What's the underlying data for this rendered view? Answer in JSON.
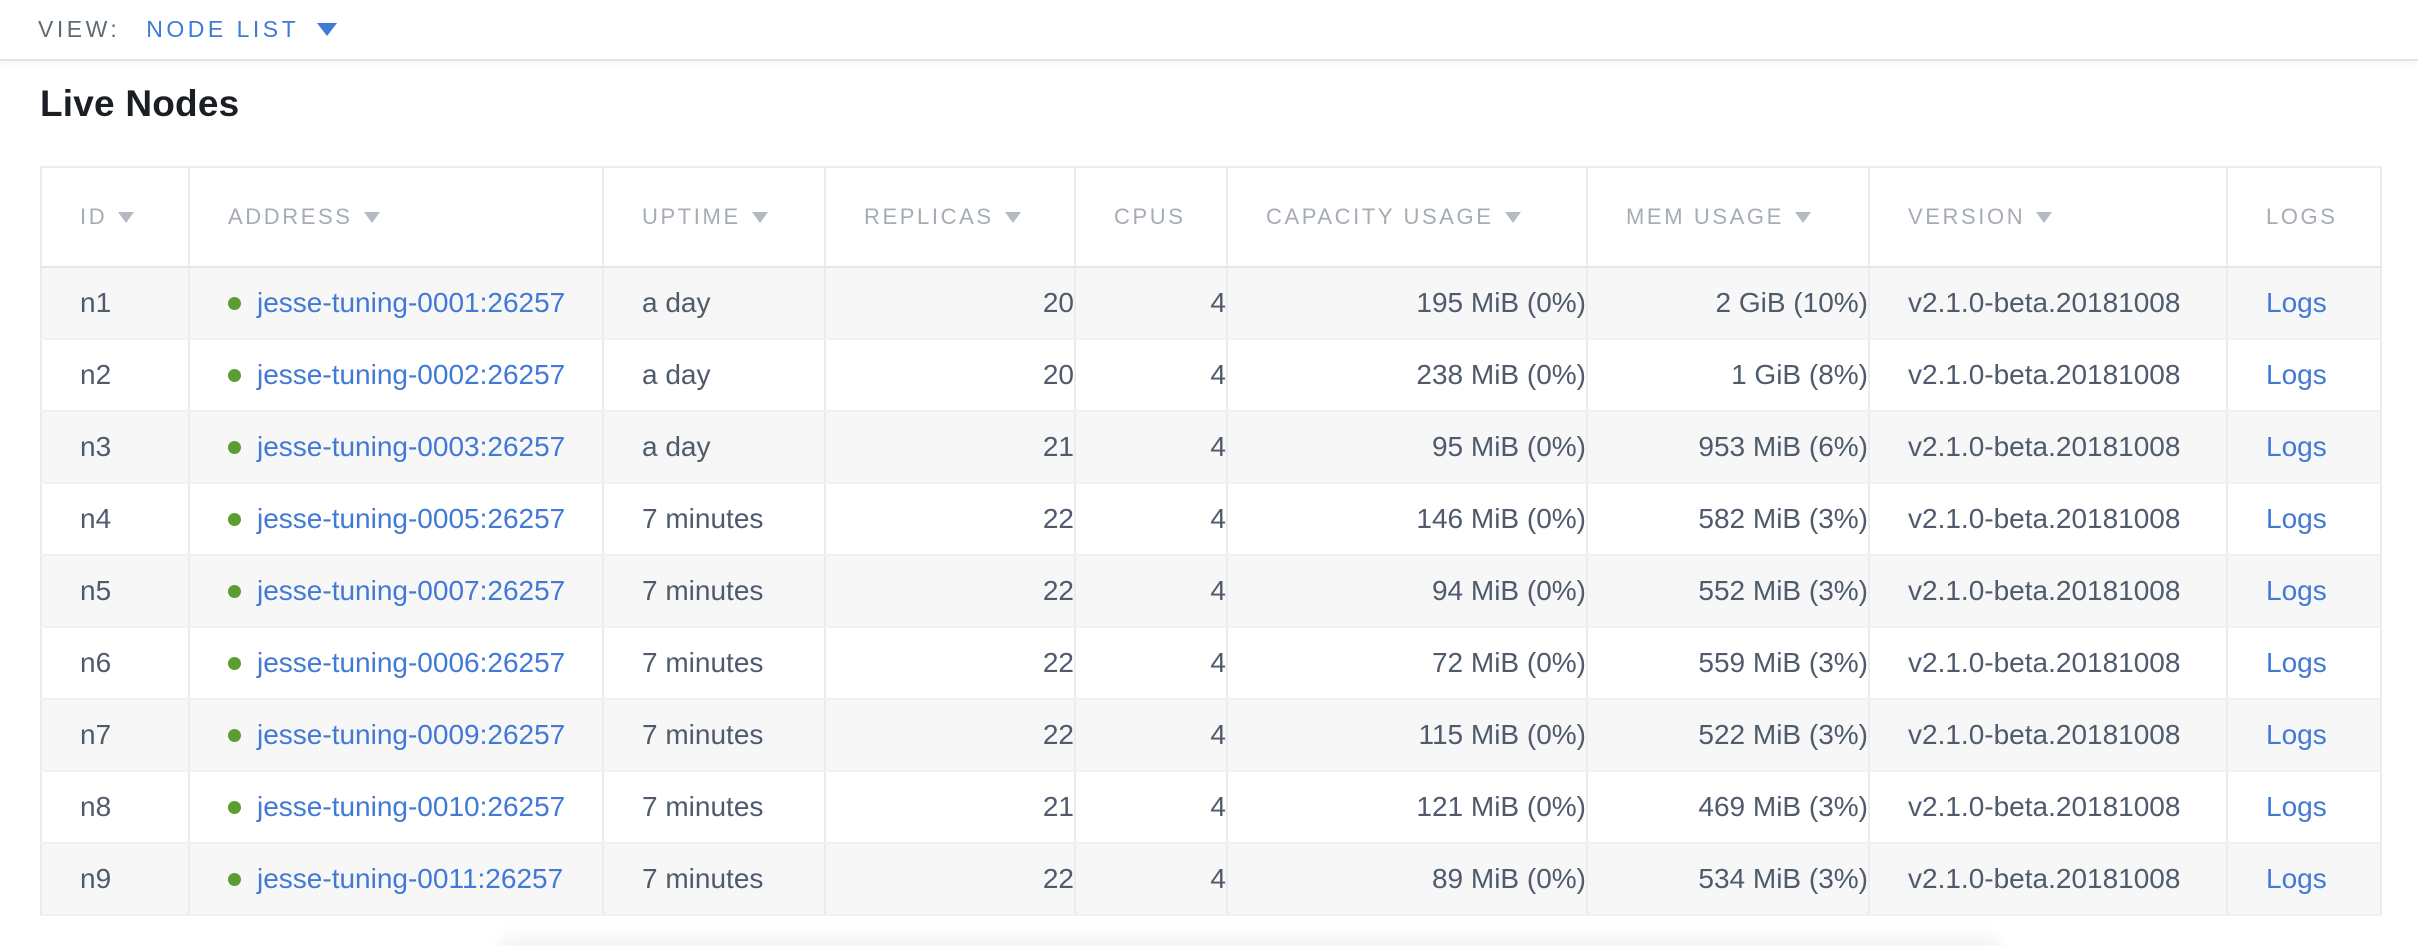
{
  "view_bar": {
    "label": "VIEW:",
    "selected": "NODE LIST"
  },
  "page": {
    "title": "Live Nodes"
  },
  "colors": {
    "accent_blue": "#4179d7",
    "live_green": "#5a9e33",
    "header_gray": "#a6acb4",
    "cell_text": "#4f5b6d",
    "row_stripe": "#f7f7f7"
  },
  "table": {
    "columns": [
      {
        "label": "ID",
        "sortable": true
      },
      {
        "label": "ADDRESS",
        "sortable": true
      },
      {
        "label": "UPTIME",
        "sortable": true
      },
      {
        "label": "REPLICAS",
        "sortable": true
      },
      {
        "label": "CPUS",
        "sortable": false
      },
      {
        "label": "CAPACITY USAGE",
        "sortable": true
      },
      {
        "label": "MEM USAGE",
        "sortable": true
      },
      {
        "label": "VERSION",
        "sortable": true
      },
      {
        "label": "LOGS",
        "sortable": false
      }
    ],
    "rows": [
      {
        "id": "n1",
        "address": "jesse-tuning-0001:26257",
        "uptime": "a day",
        "replicas": "20",
        "cpus": "4",
        "capacity": "195 MiB (0%)",
        "mem": "2 GiB (10%)",
        "version": "v2.1.0-beta.20181008",
        "logs": "Logs"
      },
      {
        "id": "n2",
        "address": "jesse-tuning-0002:26257",
        "uptime": "a day",
        "replicas": "20",
        "cpus": "4",
        "capacity": "238 MiB (0%)",
        "mem": "1 GiB (8%)",
        "version": "v2.1.0-beta.20181008",
        "logs": "Logs"
      },
      {
        "id": "n3",
        "address": "jesse-tuning-0003:26257",
        "uptime": "a day",
        "replicas": "21",
        "cpus": "4",
        "capacity": "95 MiB (0%)",
        "mem": "953 MiB (6%)",
        "version": "v2.1.0-beta.20181008",
        "logs": "Logs"
      },
      {
        "id": "n4",
        "address": "jesse-tuning-0005:26257",
        "uptime": "7 minutes",
        "replicas": "22",
        "cpus": "4",
        "capacity": "146 MiB (0%)",
        "mem": "582 MiB (3%)",
        "version": "v2.1.0-beta.20181008",
        "logs": "Logs"
      },
      {
        "id": "n5",
        "address": "jesse-tuning-0007:26257",
        "uptime": "7 minutes",
        "replicas": "22",
        "cpus": "4",
        "capacity": "94 MiB (0%)",
        "mem": "552 MiB (3%)",
        "version": "v2.1.0-beta.20181008",
        "logs": "Logs"
      },
      {
        "id": "n6",
        "address": "jesse-tuning-0006:26257",
        "uptime": "7 minutes",
        "replicas": "22",
        "cpus": "4",
        "capacity": "72 MiB (0%)",
        "mem": "559 MiB (3%)",
        "version": "v2.1.0-beta.20181008",
        "logs": "Logs"
      },
      {
        "id": "n7",
        "address": "jesse-tuning-0009:26257",
        "uptime": "7 minutes",
        "replicas": "22",
        "cpus": "4",
        "capacity": "115 MiB (0%)",
        "mem": "522 MiB (3%)",
        "version": "v2.1.0-beta.20181008",
        "logs": "Logs"
      },
      {
        "id": "n8",
        "address": "jesse-tuning-0010:26257",
        "uptime": "7 minutes",
        "replicas": "21",
        "cpus": "4",
        "capacity": "121 MiB (0%)",
        "mem": "469 MiB (3%)",
        "version": "v2.1.0-beta.20181008",
        "logs": "Logs"
      },
      {
        "id": "n9",
        "address": "jesse-tuning-0011:26257",
        "uptime": "7 minutes",
        "replicas": "22",
        "cpus": "4",
        "capacity": "89 MiB (0%)",
        "mem": "534 MiB (3%)",
        "version": "v2.1.0-beta.20181008",
        "logs": "Logs"
      }
    ]
  }
}
